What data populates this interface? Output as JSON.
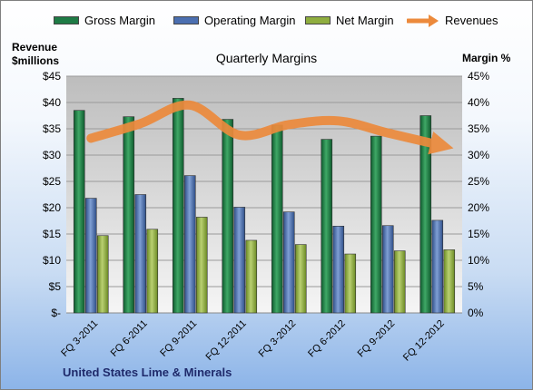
{
  "legend": [
    {
      "label": "Gross Margin",
      "color": "#1e7b45"
    },
    {
      "label": "Operating Margin",
      "color": "#4b6fb0"
    },
    {
      "label": "Net Margin",
      "color": "#8fae3f"
    },
    {
      "label": "Revenues",
      "color": "#ec8a3c"
    }
  ],
  "left_axis_title": [
    "Revenue",
    "$millions"
  ],
  "right_axis_title": "Margin %",
  "footer": "United States Lime & Minerals",
  "chart_data": {
    "type": "bar",
    "title": "Quarterly Margins",
    "categories": [
      "FQ 3-2011",
      "FQ 6-2011",
      "FQ 9-2011",
      "FQ 12-2011",
      "FQ 3-2012",
      "FQ 6-2012",
      "FQ 9-2012",
      "FQ 12-2012"
    ],
    "series": [
      {
        "name": "Gross Margin",
        "axis": "right",
        "color": "#1e7b45",
        "values": [
          38.5,
          37.3,
          40.8,
          36.8,
          35.7,
          33.0,
          33.6,
          37.5
        ]
      },
      {
        "name": "Operating Margin",
        "axis": "right",
        "color": "#4b6fb0",
        "values": [
          21.8,
          22.5,
          26.1,
          20.1,
          19.2,
          16.5,
          16.6,
          17.6
        ]
      },
      {
        "name": "Net Margin",
        "axis": "right",
        "color": "#8fae3f",
        "values": [
          14.7,
          15.9,
          18.2,
          13.8,
          13.0,
          11.2,
          11.8,
          12.0
        ]
      },
      {
        "name": "Revenues",
        "axis": "left",
        "type": "line",
        "color": "#ec8a3c",
        "values": [
          33.2,
          36.0,
          39.5,
          33.8,
          35.8,
          36.5,
          34.2,
          32.0
        ]
      }
    ],
    "left_axis": {
      "min": 0,
      "max": 45,
      "ticks": [
        "$-",
        "$5",
        "$10",
        "$15",
        "$20",
        "$25",
        "$30",
        "$35",
        "$40",
        "$45"
      ]
    },
    "right_axis": {
      "min": 0,
      "max": 45,
      "ticks": [
        "0%",
        "5%",
        "10%",
        "15%",
        "20%",
        "25%",
        "30%",
        "35%",
        "40%",
        "45%"
      ]
    },
    "grid": true,
    "legend_position": "top"
  }
}
